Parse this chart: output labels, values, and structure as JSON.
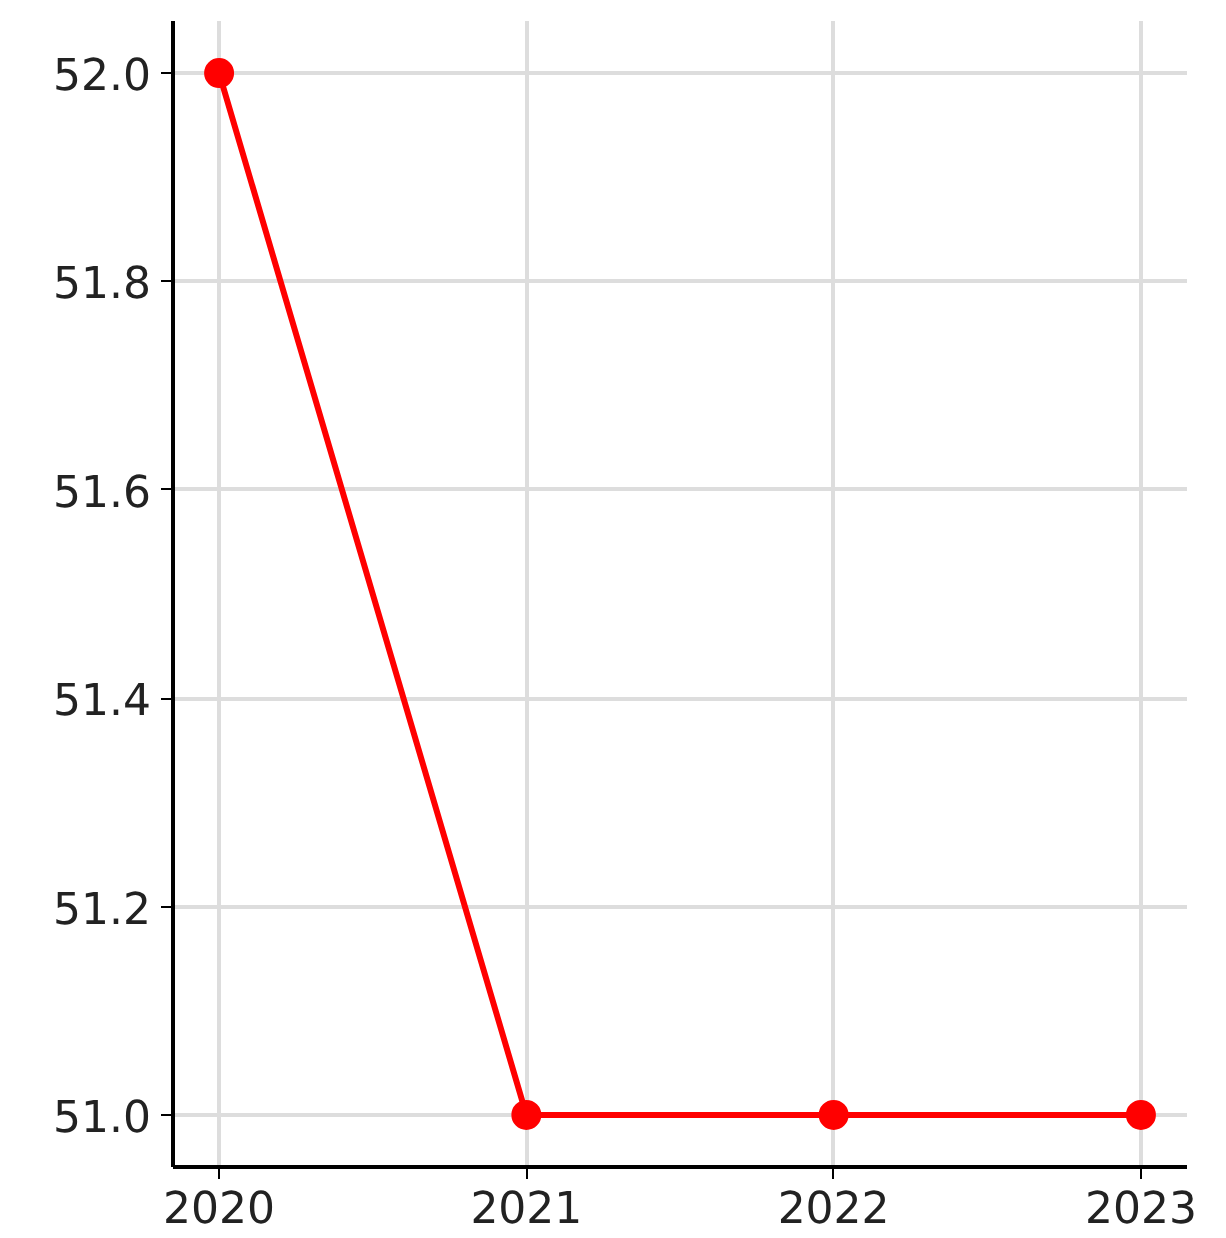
{
  "chart_data": {
    "type": "line",
    "x": [
      2020,
      2021,
      2022,
      2023
    ],
    "series": [
      {
        "color": "#ff0000",
        "values": [
          52.0,
          51.0,
          51.0,
          51.0
        ]
      }
    ],
    "xlim": [
      2019.85,
      2023.15
    ],
    "xticks": [
      2020,
      2021,
      2022,
      2023
    ],
    "ylim": [
      50.95,
      52.05
    ],
    "yticks": [
      {
        "value": 51.0,
        "label": "51.0"
      },
      {
        "value": 51.2,
        "label": "51.2"
      },
      {
        "value": 51.4,
        "label": "51.4"
      },
      {
        "value": 51.6,
        "label": "51.6"
      },
      {
        "value": 51.8,
        "label": "51.8"
      },
      {
        "value": 52.0,
        "label": "52.0"
      }
    ],
    "grid": true,
    "marker": "circle",
    "line_style": "solid"
  }
}
